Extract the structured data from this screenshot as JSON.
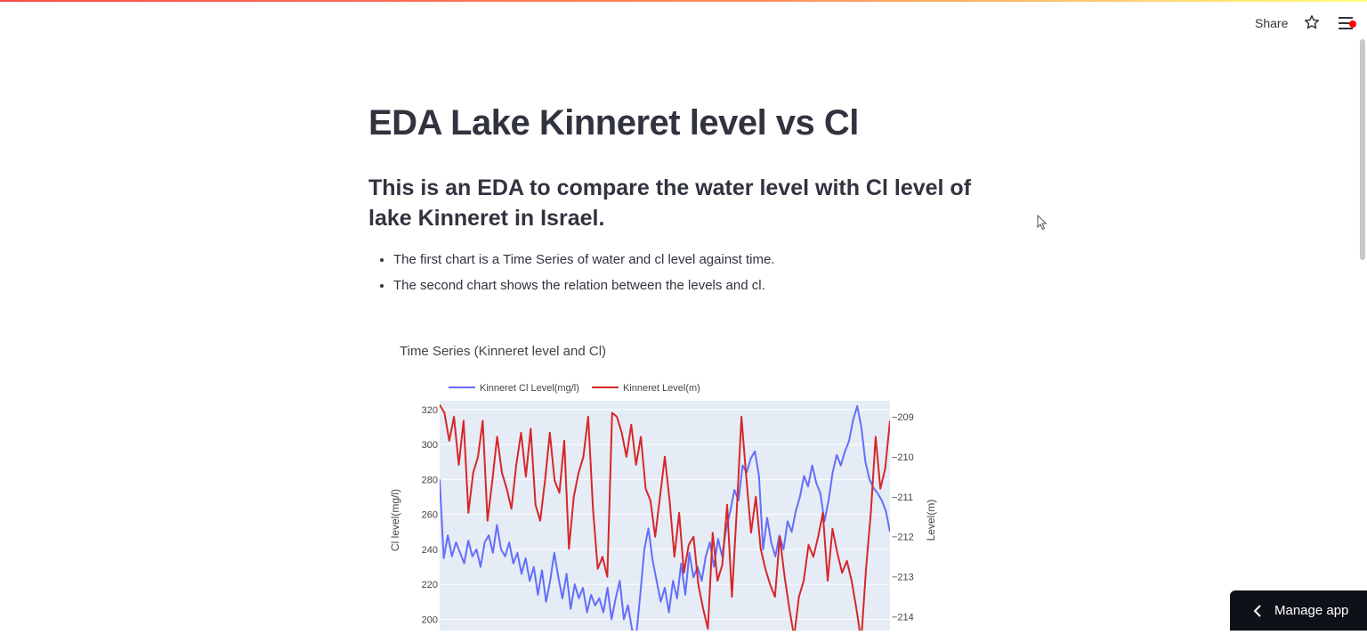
{
  "header": {
    "share_label": "Share",
    "star_icon": "star-icon",
    "menu_icon": "hamburger-menu-icon"
  },
  "page": {
    "title": "EDA Lake Kinneret level vs Cl",
    "subtitle": "This is an EDA to compare the water level with Cl level of lake Kinneret in Israel.",
    "bullets": [
      "The first chart is a Time Series of water and cl level against time.",
      "The second chart shows the relation between the levels and cl."
    ]
  },
  "footer": {
    "manage_app_label": "Manage app"
  },
  "colors": {
    "accent_red": "#ff4b4b",
    "series_blue": "#636efa",
    "series_red": "#d62728",
    "text": "#31333f"
  },
  "chart_data": {
    "type": "line",
    "title": "Time Series (Kinneret level and Cl)",
    "ylabel": "Cl level(mg/l)",
    "y2label": "Level(m)",
    "legend_position": "top",
    "ylim": [
      190,
      325
    ],
    "y2lim": [
      -214.5,
      -208.6
    ],
    "yticks": [
      200,
      220,
      240,
      260,
      280,
      300,
      320
    ],
    "y2ticks": [
      -214,
      -213,
      -212,
      -211,
      -210,
      -209
    ],
    "grid": true,
    "series": [
      {
        "name": "Kinneret Cl Level(mg/l)",
        "axis": "left",
        "color": "#636efa",
        "values": [
          280,
          235,
          248,
          236,
          244,
          238,
          232,
          245,
          236,
          240,
          230,
          244,
          248,
          238,
          254,
          240,
          236,
          244,
          232,
          238,
          226,
          235,
          222,
          230,
          214,
          228,
          210,
          222,
          238,
          224,
          212,
          226,
          206,
          220,
          212,
          218,
          204,
          214,
          208,
          212,
          204,
          218,
          200,
          212,
          222,
          200,
          208,
          194,
          190,
          214,
          240,
          252,
          234,
          222,
          210,
          218,
          204,
          222,
          212,
          232,
          214,
          238,
          224,
          230,
          222,
          236,
          244,
          230,
          246,
          236,
          252,
          262,
          274,
          268,
          288,
          284,
          292,
          296,
          282,
          240,
          258,
          244,
          236,
          248,
          240,
          256,
          250,
          262,
          270,
          282,
          276,
          288,
          278,
          272,
          256,
          268,
          284,
          294,
          288,
          296,
          302,
          314,
          322,
          310,
          290,
          280,
          275,
          272,
          268,
          262,
          250
        ]
      },
      {
        "name": "Kinneret Level(m)",
        "axis": "right",
        "color": "#d62728",
        "values": [
          -208.7,
          -208.9,
          -209.6,
          -209.0,
          -210.2,
          -209.1,
          -211.4,
          -210.4,
          -210.0,
          -209.1,
          -211.6,
          -210.6,
          -209.5,
          -210.4,
          -210.8,
          -211.3,
          -210.2,
          -209.4,
          -210.5,
          -209.3,
          -211.2,
          -211.6,
          -210.6,
          -209.4,
          -210.6,
          -210.9,
          -209.6,
          -212.3,
          -211.0,
          -210.4,
          -210.0,
          -209.0,
          -211.3,
          -212.8,
          -212.5,
          -213.0,
          -208.9,
          -209.0,
          -209.4,
          -210.0,
          -209.2,
          -210.2,
          -209.5,
          -210.8,
          -211.1,
          -212.0,
          -211.0,
          -210.0,
          -211.1,
          -212.5,
          -211.4,
          -212.9,
          -212.2,
          -212.0,
          -213.2,
          -213.8,
          -214.3,
          -211.9,
          -213.1,
          -212.7,
          -211.2,
          -213.5,
          -211.4,
          -209.0,
          -210.5,
          -211.9,
          -211.0,
          -212.3,
          -212.8,
          -213.2,
          -213.5,
          -212.0,
          -213.0,
          -213.8,
          -214.5,
          -213.5,
          -213.1,
          -212.2,
          -212.5,
          -212.0,
          -211.4,
          -213.1,
          -211.8,
          -212.4,
          -212.9,
          -212.6,
          -213.1,
          -213.8,
          -214.6,
          -212.8,
          -211.4,
          -209.5,
          -210.8,
          -210.3,
          -209.1
        ]
      }
    ]
  }
}
